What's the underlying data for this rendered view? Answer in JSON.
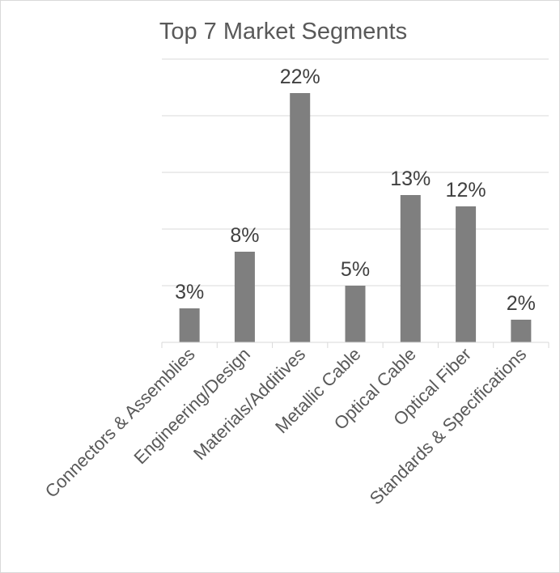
{
  "chart_data": {
    "type": "bar",
    "title": "Top 7 Market Segments",
    "xlabel": "",
    "ylabel": "",
    "categories": [
      "Connectors & Assemblies",
      "Engineering/Design",
      "Materials/Additives",
      "Metallic Cable",
      "Optical Cable",
      "Optical Fiber",
      "Standards & Specifications"
    ],
    "values": [
      3,
      8,
      22,
      5,
      13,
      12,
      2
    ],
    "data_labels": [
      "3%",
      "8%",
      "22%",
      "5%",
      "13%",
      "12%",
      "2%"
    ],
    "ylim": [
      0,
      25
    ],
    "y_gridlines": [
      5,
      10,
      15,
      20,
      25
    ],
    "grid": true,
    "legend": "none",
    "colors": {
      "bar": "#7f7f7f",
      "gridline": "#d9d9d9",
      "axis": "#d9d9d9",
      "title": "#595959",
      "data_label": "#404040",
      "tick_label": "#595959"
    }
  }
}
